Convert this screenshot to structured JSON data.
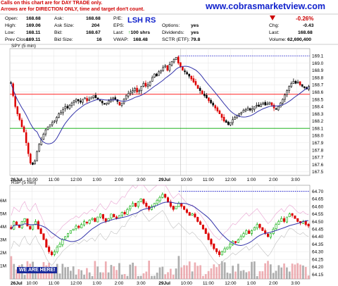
{
  "notes": {
    "line1": "Calls on this chart are for DAY TRADE only.",
    "line2": "Arrows are for DIRECTION ONLY, time and target don't count."
  },
  "site_url": "www.cobrasmarketview.com",
  "ticker_label": "LSH RS",
  "quote": {
    "open_label": "Open:",
    "open": "168.68",
    "high_label": "High:",
    "high": "169.06",
    "low_label": "Low:",
    "low": "168.11",
    "prev_close_label": "Prev Close:",
    "prev_close": "169.11",
    "ask_label": "Ask:",
    "ask": "168.68",
    "ask_size_label": "Ask Size:",
    "ask_size": "204",
    "bid_label": "Bid:",
    "bid": "168.67",
    "bid_size_label": "Bid Size:",
    "bid_size": "16",
    "pe_label": "P/E:",
    "pe": "",
    "eps_label": "EPS:",
    "eps": "",
    "last_label": "Last:",
    "last_trade": "100 shrs",
    "vwap_label": "VWAP:",
    "vwap": "168.48",
    "options_label": "Options:",
    "options": "yes",
    "dividends_label": "Dividends:",
    "dividends": "yes",
    "sctr_label": "SCTR (ETF):",
    "sctr": "79.8",
    "change_pct": "-0.26%",
    "chg_label": "Chg:",
    "chg": "-0.43",
    "last2_label": "Last:",
    "last2": "168.68",
    "volume_label": "Volume:",
    "volume": "62,690,400"
  },
  "badge": "WE ARE HERE!",
  "colors": {
    "up": "#00aa00",
    "down": "#dd0000",
    "neutral": "#000000",
    "ma": "#3333aa",
    "hline_red": "#ff0000",
    "hline_green": "#00aa00",
    "dotted": "#0000cc",
    "rsp_band": "#e8a0d0"
  },
  "chart_data": [
    {
      "type": "candlestick",
      "title": "SPY (5 min)",
      "ylim": [
        167.45,
        169.2
      ],
      "y_ticks": [
        "169.1",
        "169.0",
        "168.9",
        "168.8",
        "168.7",
        "168.6",
        "168.5",
        "168.4",
        "168.3",
        "168.2",
        "168.1",
        "168.0",
        "167.9",
        "167.8",
        "167.7",
        "167.6",
        "167.5"
      ],
      "x_ticks": [
        "26Jul",
        "10:00",
        "11:00",
        "12:00",
        "1:00",
        "2:00",
        "3:00",
        "29Jul",
        "10:00",
        "11:00",
        "12:00",
        "1:00",
        "2:00",
        "3:00"
      ],
      "session_break_after": 78,
      "close": [
        168.72,
        168.55,
        168.4,
        168.3,
        168.22,
        168.12,
        168.05,
        167.9,
        167.75,
        167.62,
        167.6,
        167.65,
        167.78,
        167.88,
        167.94,
        168.02,
        168.08,
        168.12,
        168.15,
        168.18,
        168.2,
        168.25,
        168.3,
        168.32,
        168.36,
        168.4,
        168.38,
        168.42,
        168.45,
        168.48,
        168.5,
        168.48,
        168.46,
        168.5,
        168.52,
        168.48,
        168.5,
        168.53,
        168.55,
        168.52,
        168.5,
        168.48,
        168.45,
        168.43,
        168.45,
        168.48,
        168.5,
        168.52,
        168.5,
        168.47,
        168.42,
        168.45,
        168.5,
        168.55,
        168.58,
        168.6,
        168.62,
        168.65,
        168.6,
        168.62,
        168.68,
        168.72,
        168.68,
        168.7,
        168.74,
        168.8,
        168.85,
        168.82,
        168.88,
        168.9,
        168.94,
        168.96,
        168.9,
        168.98,
        169.02,
        169.05,
        169.08,
        169.0,
        168.95,
        168.9,
        168.88,
        168.85,
        168.82,
        168.78,
        168.74,
        168.7,
        168.65,
        168.62,
        168.58,
        168.55,
        168.52,
        168.48,
        168.45,
        168.42,
        168.38,
        168.34,
        168.3,
        168.25,
        168.2,
        168.18,
        168.15,
        168.18,
        168.22,
        168.25,
        168.28,
        168.3,
        168.32,
        168.35,
        168.36,
        168.38,
        168.35,
        168.37,
        168.4,
        168.42,
        168.4,
        168.43,
        168.45,
        168.42,
        168.44,
        168.46,
        168.42,
        168.38,
        168.36,
        168.4,
        168.45,
        168.5,
        168.56,
        168.62,
        168.68,
        168.72,
        168.75,
        168.72,
        168.74,
        168.7,
        168.68,
        168.66,
        168.64,
        168.68
      ],
      "hlines": [
        {
          "value": 168.57,
          "color": "red"
        },
        {
          "value": 168.1,
          "color": "green"
        }
      ],
      "dotted_level": 169.1
    },
    {
      "type": "candlestick",
      "title": "RSP (5 min)",
      "ylim": [
        64.12,
        64.74
      ],
      "y_ticks": [
        "64.70",
        "64.65",
        "64.60",
        "64.55",
        "64.50",
        "64.45",
        "64.40",
        "64.35",
        "64.30",
        "64.25",
        "64.20",
        "64.15"
      ],
      "volume_ticks": [
        "6M",
        "5M",
        "4M",
        "3M",
        "2M",
        "1M"
      ],
      "x_ticks": [
        "26Jul",
        "10:00",
        "11:00",
        "12:00",
        "1:00",
        "2:00",
        "3:00",
        "29Jul",
        "10:00",
        "11:00",
        "12:00",
        "1:00",
        "2:00",
        "3:00"
      ],
      "close": [
        64.45,
        64.5,
        64.48,
        64.46,
        64.5,
        64.52,
        64.47,
        64.45,
        64.48,
        64.5,
        64.45,
        64.42,
        64.38,
        64.33,
        64.3,
        64.28,
        64.3,
        64.33,
        64.35,
        64.38,
        64.4,
        64.42,
        64.44,
        64.45,
        64.47,
        64.46,
        64.48,
        64.5,
        64.49,
        64.51,
        64.52,
        64.5,
        64.53,
        64.55,
        64.52,
        64.5,
        64.52,
        64.55,
        64.53,
        64.52,
        64.54,
        64.56,
        64.55,
        64.58,
        64.6,
        64.62,
        64.6,
        64.63,
        64.65,
        64.62,
        64.6,
        64.58,
        64.6,
        64.62,
        64.64,
        64.66,
        64.68,
        64.66,
        64.63,
        64.6,
        64.58,
        64.6,
        64.62,
        64.6,
        64.58,
        64.56,
        64.54,
        64.55,
        64.53,
        64.5,
        64.48,
        64.45,
        64.42,
        64.38,
        64.35,
        64.32,
        64.3,
        64.28,
        64.3,
        64.32,
        64.33,
        64.35,
        64.37,
        64.36,
        64.38,
        64.4,
        64.42,
        64.44,
        64.42,
        64.44,
        64.46,
        64.48,
        64.46,
        64.44,
        64.42,
        64.4,
        64.42,
        64.45,
        64.48,
        64.5,
        64.52,
        64.5,
        64.53,
        64.55,
        64.54,
        64.52,
        64.5,
        64.49,
        64.5,
        64.48,
        64.47
      ],
      "dotted_level": 64.7
    }
  ]
}
